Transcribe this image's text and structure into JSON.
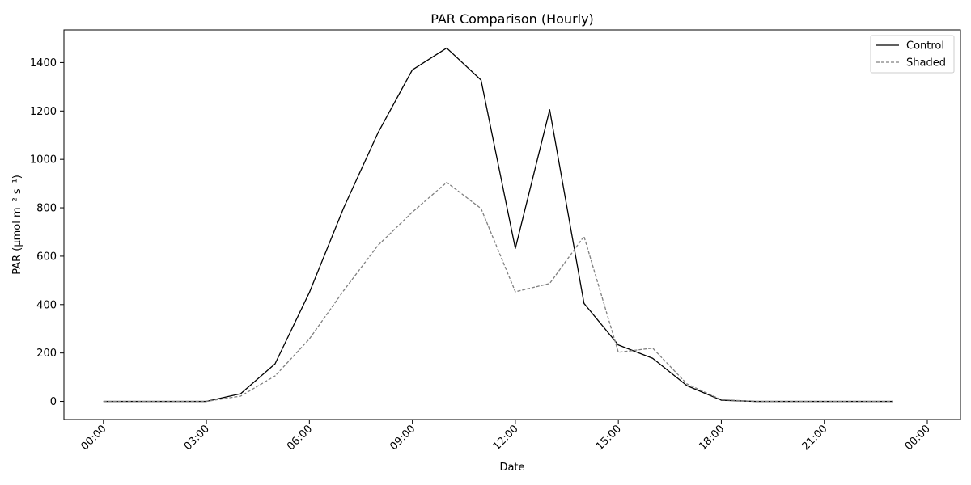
{
  "chart_data": {
    "type": "line",
    "title": "PAR Comparison (Hourly)",
    "xlabel": "Date",
    "ylabel": "PAR (µmol m⁻² s⁻¹)",
    "x": [
      "00:00",
      "01:00",
      "02:00",
      "03:00",
      "04:00",
      "05:00",
      "06:00",
      "07:00",
      "08:00",
      "09:00",
      "10:00",
      "11:00",
      "12:00",
      "13:00",
      "14:00",
      "15:00",
      "16:00",
      "17:00",
      "18:00",
      "19:00",
      "20:00",
      "21:00",
      "22:00",
      "23:00"
    ],
    "x_ticks": [
      "00:00",
      "03:00",
      "06:00",
      "09:00",
      "12:00",
      "15:00",
      "18:00",
      "21:00",
      "00:00"
    ],
    "y_ticks": [
      0,
      200,
      400,
      600,
      800,
      1000,
      1200,
      1400
    ],
    "xlim": [
      "-01:09",
      "24:58"
    ],
    "ylim": [
      -75,
      1535
    ],
    "grid": false,
    "legend": "top-right",
    "series": [
      {
        "name": "Control",
        "color": "#000000",
        "style": "solid",
        "values": [
          0,
          0,
          0,
          0,
          32,
          155,
          450,
          800,
          1110,
          1370,
          1460,
          1328,
          632,
          1205,
          405,
          233,
          178,
          65,
          5,
          0,
          0,
          0,
          0,
          0
        ]
      },
      {
        "name": "Shaded",
        "color": "#808080",
        "style": "dashed",
        "values": [
          0,
          0,
          0,
          0,
          22,
          105,
          258,
          458,
          645,
          782,
          905,
          797,
          453,
          487,
          682,
          203,
          220,
          72,
          7,
          0,
          0,
          0,
          0,
          0
        ]
      }
    ]
  }
}
